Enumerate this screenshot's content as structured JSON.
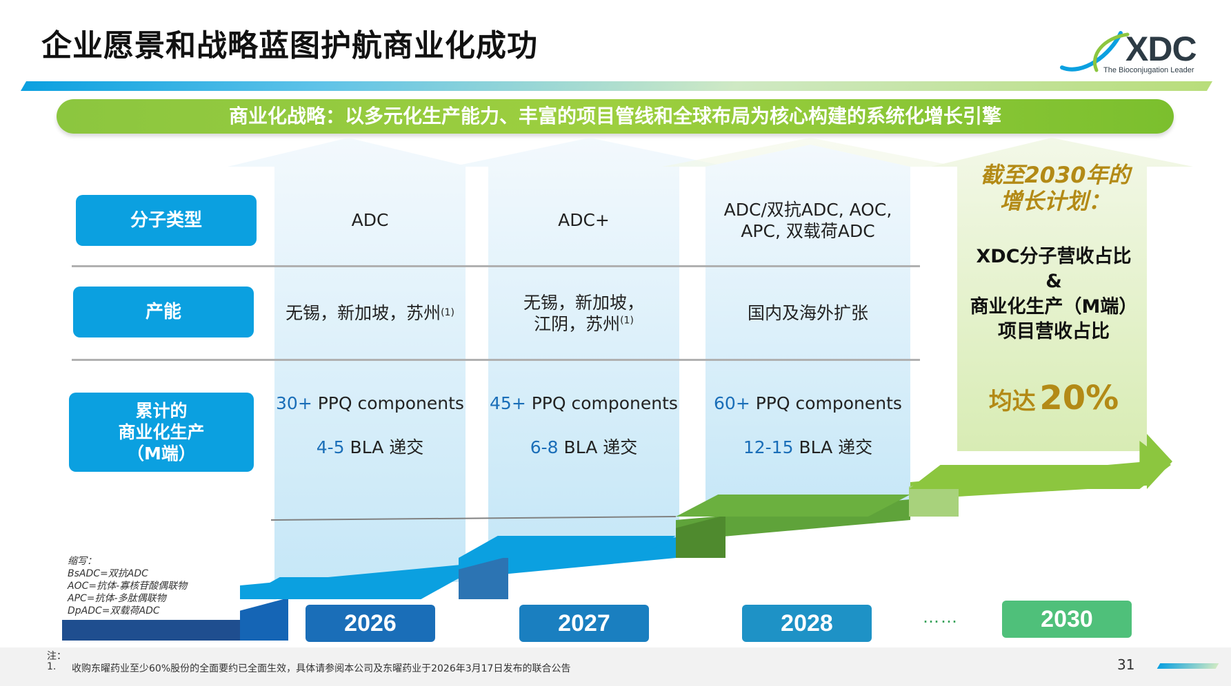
{
  "title": "企业愿景和战略蓝图护航商业化成功",
  "logo": {
    "name": "XDC",
    "tagline": "The Bioconjugation Leader"
  },
  "strategy": "商业化战略：以多元化生产能力、丰富的项目管线和全球布局为核心构建的系统化增长引擎",
  "rows": {
    "molecule": "分子类型",
    "capacity": "产能",
    "cumulative": [
      "累计的",
      "商业化生产",
      "（M端）"
    ]
  },
  "columns": [
    {
      "molecule": [
        "ADC"
      ],
      "capacity": [
        "无锡，新加坡，苏州"
      ],
      "capacity_note": "(1)",
      "ppq_num": "30+",
      "ppq_text": " PPQ components",
      "bla_num": "4-5",
      "bla_text": " BLA 递交"
    },
    {
      "molecule": [
        "ADC+"
      ],
      "capacity": [
        "无锡，新加坡，",
        "江阴，苏州"
      ],
      "capacity_note": "(1)",
      "ppq_num": "45+",
      "ppq_text": " PPQ components",
      "bla_num": "6-8",
      "bla_text": " BLA 递交"
    },
    {
      "molecule": [
        "ADC/双抗ADC, AOC,",
        "APC, 双载荷ADC"
      ],
      "capacity": [
        "国内及海外扩张"
      ],
      "capacity_note": "",
      "ppq_num": "60+",
      "ppq_text": " PPQ components",
      "bla_num": "12-15",
      "bla_text": " BLA 递交"
    }
  ],
  "plan": {
    "heading": [
      "截至2030年的",
      "增长计划："
    ],
    "body": [
      "XDC分子营收占比",
      "&",
      "商业化生产（M端）",
      "项目营收占比"
    ],
    "result_prefix": "均达",
    "result_value": "20%"
  },
  "years": [
    "2026",
    "2027",
    "2028",
    "2030"
  ],
  "ellipsis": "……",
  "abbrev": {
    "heading": "缩写：",
    "items": [
      "BsADC=双抗ADC",
      "AOC=抗体-寡核苷酸偶联物",
      "APC=抗体-多肽偶联物",
      "DpADC=双载荷ADC"
    ]
  },
  "footnote": {
    "label": "注：",
    "num": "1.",
    "text": "收购东曜药业至少60%股份的全面要约已全面生效，具体请参阅本公司及东曜药业于2026年3月17日发布的联合公告"
  },
  "page_number": "31",
  "colors": {
    "blue": "#0ba0e0",
    "green": "#8cc63f",
    "gold": "#b38a16"
  }
}
